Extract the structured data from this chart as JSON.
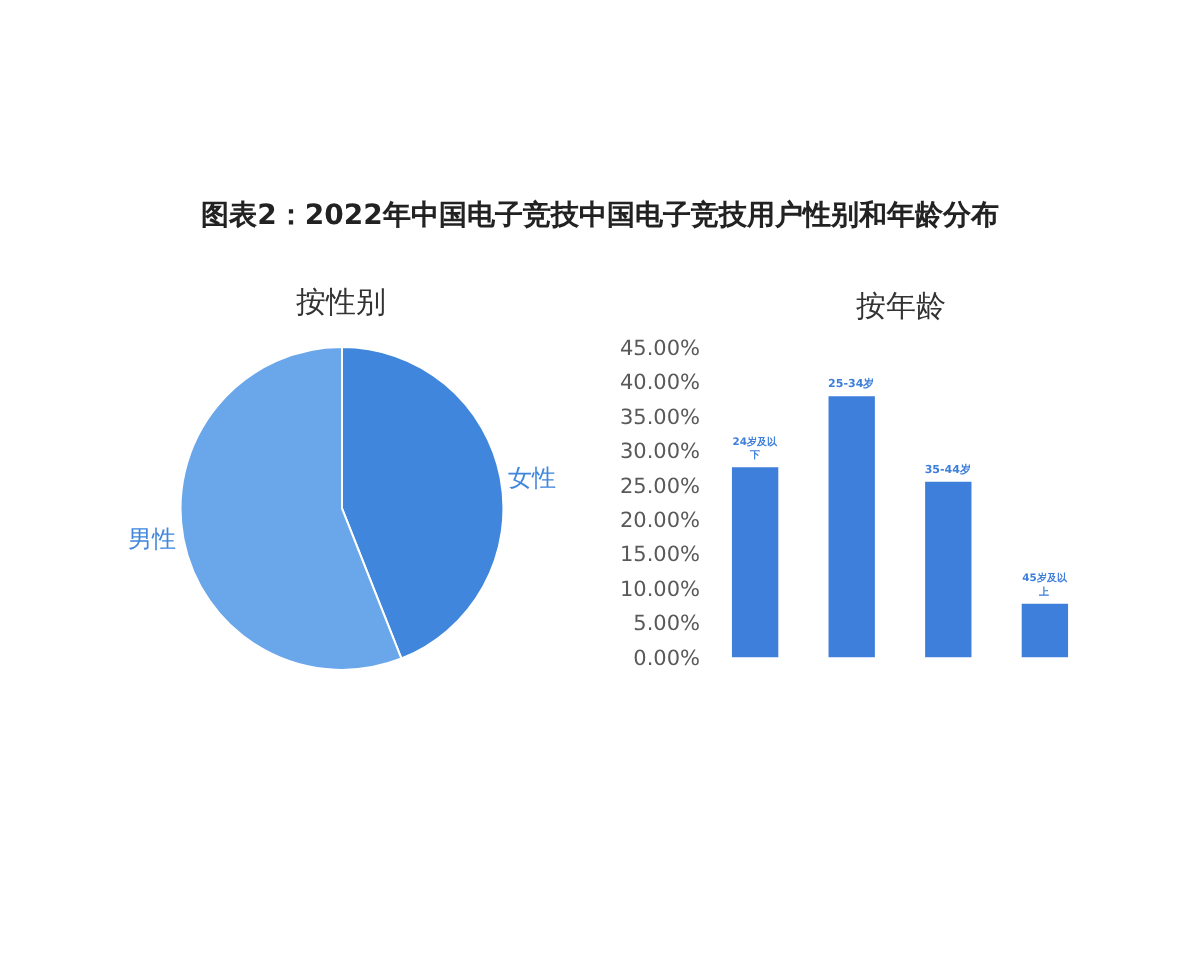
{
  "chart_data": [
    {
      "type": "pie",
      "title": "图表2：2022年中国电子竞技中国电子竞技用户性别和年龄分布",
      "subtitle": "按性别",
      "categories": [
        "女性",
        "男性"
      ],
      "values": [
        44,
        56
      ],
      "colors": [
        "#3f86dc",
        "#6aa6ea"
      ],
      "legend": false
    },
    {
      "type": "bar",
      "title": "按年龄",
      "categories": [
        "24岁及以下",
        "25-34岁",
        "35-44岁",
        "45岁及以上"
      ],
      "values": [
        27.6,
        37.9,
        25.5,
        7.8
      ],
      "color": "#3e7fdc",
      "ylim": [
        0,
        45
      ],
      "yticks": [
        {
          "value": 0,
          "label": "0.00%"
        },
        {
          "value": 5,
          "label": "5.00%"
        },
        {
          "value": 10,
          "label": "10.00%"
        },
        {
          "value": 15,
          "label": "15.00%"
        },
        {
          "value": 20,
          "label": "20.00%"
        },
        {
          "value": 25,
          "label": "25.00%"
        },
        {
          "value": 30,
          "label": "30.00%"
        },
        {
          "value": 35,
          "label": "35.00%"
        },
        {
          "value": 40,
          "label": "40.00%"
        },
        {
          "value": 45,
          "label": "45.00%"
        }
      ],
      "tick_labels": "y",
      "grid": false,
      "legend": false
    }
  ]
}
